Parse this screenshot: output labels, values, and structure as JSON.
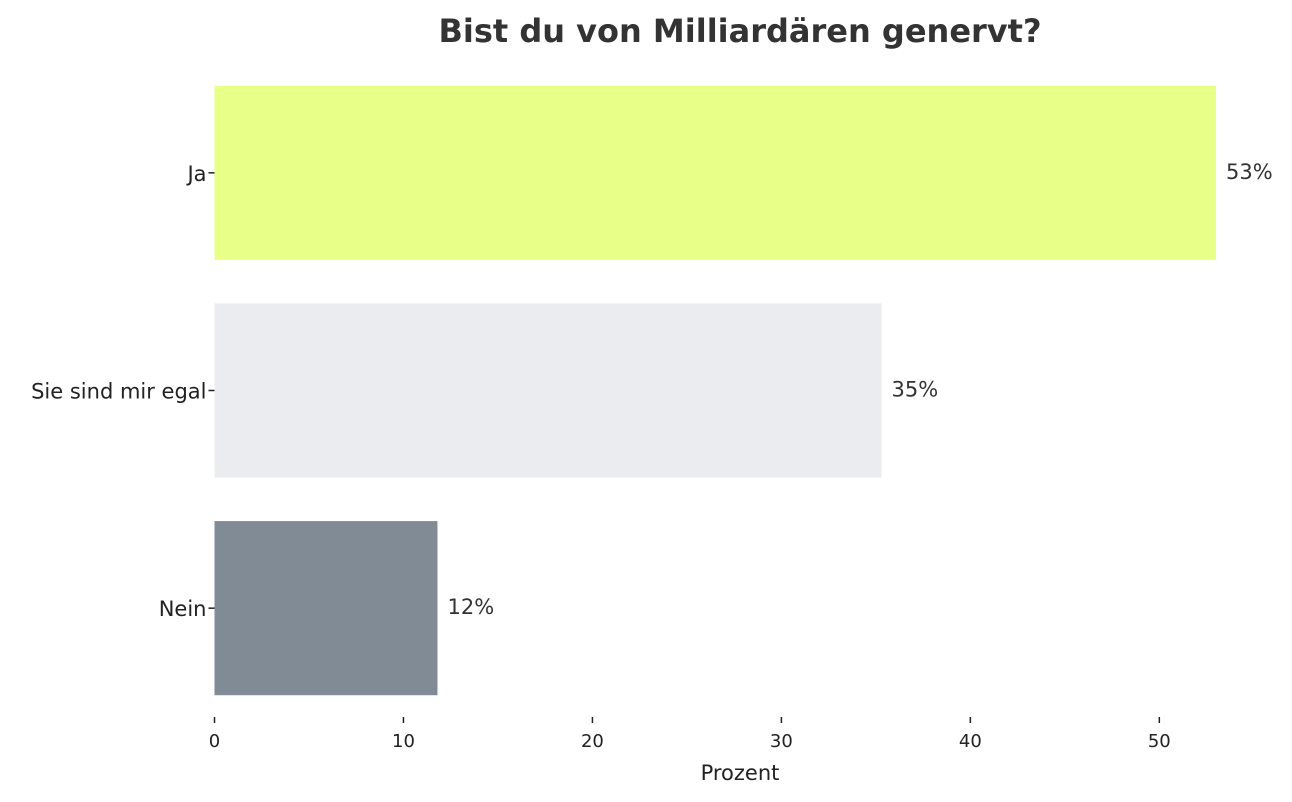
{
  "chart_data": {
    "type": "bar",
    "orientation": "horizontal",
    "title": "Bist du von Milliardären genervt?",
    "xlabel": "Prozent",
    "ylabel": "",
    "categories": [
      "Ja",
      "Sie sind mir egal",
      "Nein"
    ],
    "values": [
      53,
      35.3,
      11.8
    ],
    "value_labels": [
      "53%",
      "35%",
      "12%"
    ],
    "colors": [
      "#e8ff88",
      "#ebecf0",
      "#808b96"
    ],
    "xlim": [
      0,
      53
    ],
    "xticks": [
      0,
      10,
      20,
      30,
      40,
      50
    ],
    "xtick_labels": [
      "0",
      "10",
      "20",
      "30",
      "40",
      "50"
    ],
    "grid": false,
    "legend": "none"
  }
}
